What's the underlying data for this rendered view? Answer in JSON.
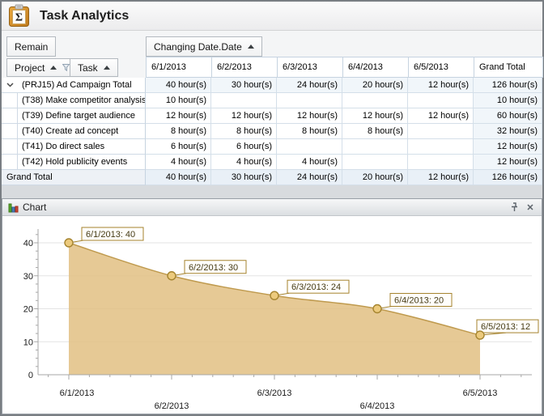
{
  "window": {
    "title": "Task Analytics"
  },
  "filter_area": {
    "measure_button": "Remain",
    "column_field": "Changing Date.Date",
    "row_fields": {
      "project": "Project",
      "task": "Task"
    }
  },
  "pivot": {
    "columns": [
      "6/1/2013",
      "6/2/2013",
      "6/3/2013",
      "6/4/2013",
      "6/5/2013",
      "Grand Total"
    ],
    "rows": [
      {
        "label": "(PRJ15) Ad Campaign Total",
        "type": "group",
        "values": [
          "40 hour(s)",
          "30 hour(s)",
          "24 hour(s)",
          "20 hour(s)",
          "12 hour(s)",
          "126 hour(s)"
        ]
      },
      {
        "label": "(T38) Make competitor analysis",
        "type": "detail",
        "values": [
          "10 hour(s)",
          "",
          "",
          "",
          "",
          "10 hour(s)"
        ]
      },
      {
        "label": "(T39) Define target audience",
        "type": "detail",
        "values": [
          "12 hour(s)",
          "12 hour(s)",
          "12 hour(s)",
          "12 hour(s)",
          "12 hour(s)",
          "60 hour(s)"
        ]
      },
      {
        "label": "(T40) Create ad concept",
        "type": "detail",
        "values": [
          "8 hour(s)",
          "8 hour(s)",
          "8 hour(s)",
          "8 hour(s)",
          "",
          "32 hour(s)"
        ]
      },
      {
        "label": "(T41) Do direct sales",
        "type": "detail",
        "values": [
          "6 hour(s)",
          "6 hour(s)",
          "",
          "",
          "",
          "12 hour(s)"
        ]
      },
      {
        "label": "(T42) Hold publicity events",
        "type": "detail",
        "values": [
          "4 hour(s)",
          "4 hour(s)",
          "4 hour(s)",
          "",
          "",
          "12 hour(s)"
        ]
      },
      {
        "label": "Grand Total",
        "type": "grand",
        "values": [
          "40 hour(s)",
          "30 hour(s)",
          "24 hour(s)",
          "20 hour(s)",
          "12 hour(s)",
          "126 hour(s)"
        ]
      }
    ]
  },
  "chart_panel": {
    "title": "Chart"
  },
  "chart_data": {
    "type": "area",
    "x": [
      "6/1/2013",
      "6/2/2013",
      "6/3/2013",
      "6/4/2013",
      "6/5/2013"
    ],
    "values": [
      40,
      30,
      24,
      20,
      12
    ],
    "point_labels": [
      "6/1/2013: 40",
      "6/2/2013: 30",
      "6/3/2013: 24",
      "6/4/2013: 20",
      "6/5/2013: 12"
    ],
    "title": "",
    "xlabel": "",
    "ylabel": "",
    "ylim": [
      0,
      43
    ],
    "yticks": [
      0,
      10,
      20,
      30,
      40
    ],
    "y_minor_step": 2.5,
    "grid": true,
    "legend": "none",
    "colors": {
      "fill": "#e2c083",
      "line": "#bf9a4e",
      "marker_fill": "#ecca7d",
      "marker_stroke": "#a5842f",
      "label_border": "#a5832e",
      "label_bg": "#fffefb",
      "label_text": "#463913",
      "gridline": "#e3e3e3",
      "axis": "#a7a7a7"
    }
  }
}
